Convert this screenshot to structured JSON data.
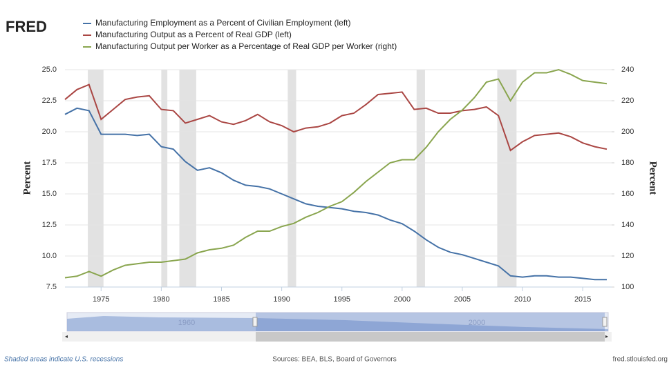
{
  "chart_data": {
    "type": "line",
    "brand": "FRED",
    "x": [
      1972,
      1973,
      1974,
      1975,
      1976,
      1977,
      1978,
      1979,
      1980,
      1981,
      1982,
      1983,
      1984,
      1985,
      1986,
      1987,
      1988,
      1989,
      1990,
      1991,
      1992,
      1993,
      1994,
      1995,
      1996,
      1997,
      1998,
      1999,
      2000,
      2001,
      2002,
      2003,
      2004,
      2005,
      2006,
      2007,
      2008,
      2009,
      2010,
      2011,
      2012,
      2013,
      2014,
      2015,
      2016,
      2017
    ],
    "series": [
      {
        "name": "Manufacturing Employment as a Percent of Civilian Employment (left)",
        "color": "#4572a7",
        "axis": "y",
        "values": [
          21.4,
          21.9,
          21.7,
          19.8,
          19.8,
          19.8,
          19.7,
          19.8,
          18.8,
          18.6,
          17.6,
          16.9,
          17.1,
          16.7,
          16.1,
          15.7,
          15.6,
          15.4,
          15.0,
          14.6,
          14.2,
          14.0,
          13.9,
          13.8,
          13.6,
          13.5,
          13.3,
          12.9,
          12.6,
          12.0,
          11.3,
          10.7,
          10.3,
          10.1,
          9.8,
          9.5,
          9.2,
          8.4,
          8.3,
          8.4,
          8.4,
          8.3,
          8.3,
          8.2,
          8.1,
          8.1
        ]
      },
      {
        "name": "Manufacturing Output as a Percent of Real GDP (left)",
        "color": "#aa4643",
        "axis": "y",
        "values": [
          22.6,
          23.4,
          23.8,
          21.0,
          21.8,
          22.6,
          22.8,
          22.9,
          21.8,
          21.7,
          20.7,
          21.0,
          21.3,
          20.8,
          20.6,
          20.9,
          21.4,
          20.8,
          20.5,
          20.0,
          20.3,
          20.4,
          20.7,
          21.3,
          21.5,
          22.2,
          23.0,
          23.1,
          23.2,
          21.8,
          21.9,
          21.5,
          21.5,
          21.7,
          21.8,
          22.0,
          21.3,
          18.5,
          19.2,
          19.7,
          19.8,
          19.9,
          19.6,
          19.1,
          18.8,
          18.6
        ]
      },
      {
        "name": "Manufacturing Output per Worker as a Percentage of Real GDP per Worker (right)",
        "color": "#89a54e",
        "axis": "y2",
        "values": [
          106,
          107,
          110,
          107,
          111,
          114,
          115,
          116,
          116,
          117,
          118,
          122,
          124,
          125,
          127,
          132,
          136,
          136,
          139,
          141,
          145,
          148,
          152,
          155,
          161,
          168,
          174,
          180,
          182,
          182,
          190,
          200,
          208,
          214,
          222,
          232,
          234,
          220,
          232,
          238,
          238,
          240,
          237,
          233,
          232,
          231
        ]
      }
    ],
    "xlim": [
      1972,
      2017.4
    ],
    "xticks": [
      1975,
      1980,
      1985,
      1990,
      1995,
      2000,
      2005,
      2010,
      2015
    ],
    "ylim": [
      7.5,
      25
    ],
    "yticks": [
      7.5,
      {
        "value": 10,
        "label": "10.0"
      },
      12.5,
      {
        "value": 15,
        "label": "15.0"
      },
      17.5,
      {
        "value": 20,
        "label": "20.0"
      },
      22.5,
      {
        "value": 25,
        "label": "25.0"
      }
    ],
    "y2lim": [
      100,
      240
    ],
    "y2ticks": [
      100,
      120,
      140,
      160,
      180,
      200,
      220,
      240
    ],
    "ylabel": "Percent",
    "y2label": "Percent",
    "grid": true,
    "recessions": [
      [
        1973.9,
        1975.2
      ],
      [
        1980.0,
        1980.5
      ],
      [
        1981.5,
        1982.9
      ],
      [
        1990.5,
        1991.2
      ],
      [
        2001.2,
        2001.9
      ],
      [
        2007.9,
        2009.5
      ]
    ],
    "navigator_labels": [
      "1960",
      "2000"
    ],
    "note": "Shaded areas indicate U.S. recessions",
    "source": "Sources: BEA, BLS, Board of Governors",
    "site": "fred.stlouisfed.org"
  }
}
